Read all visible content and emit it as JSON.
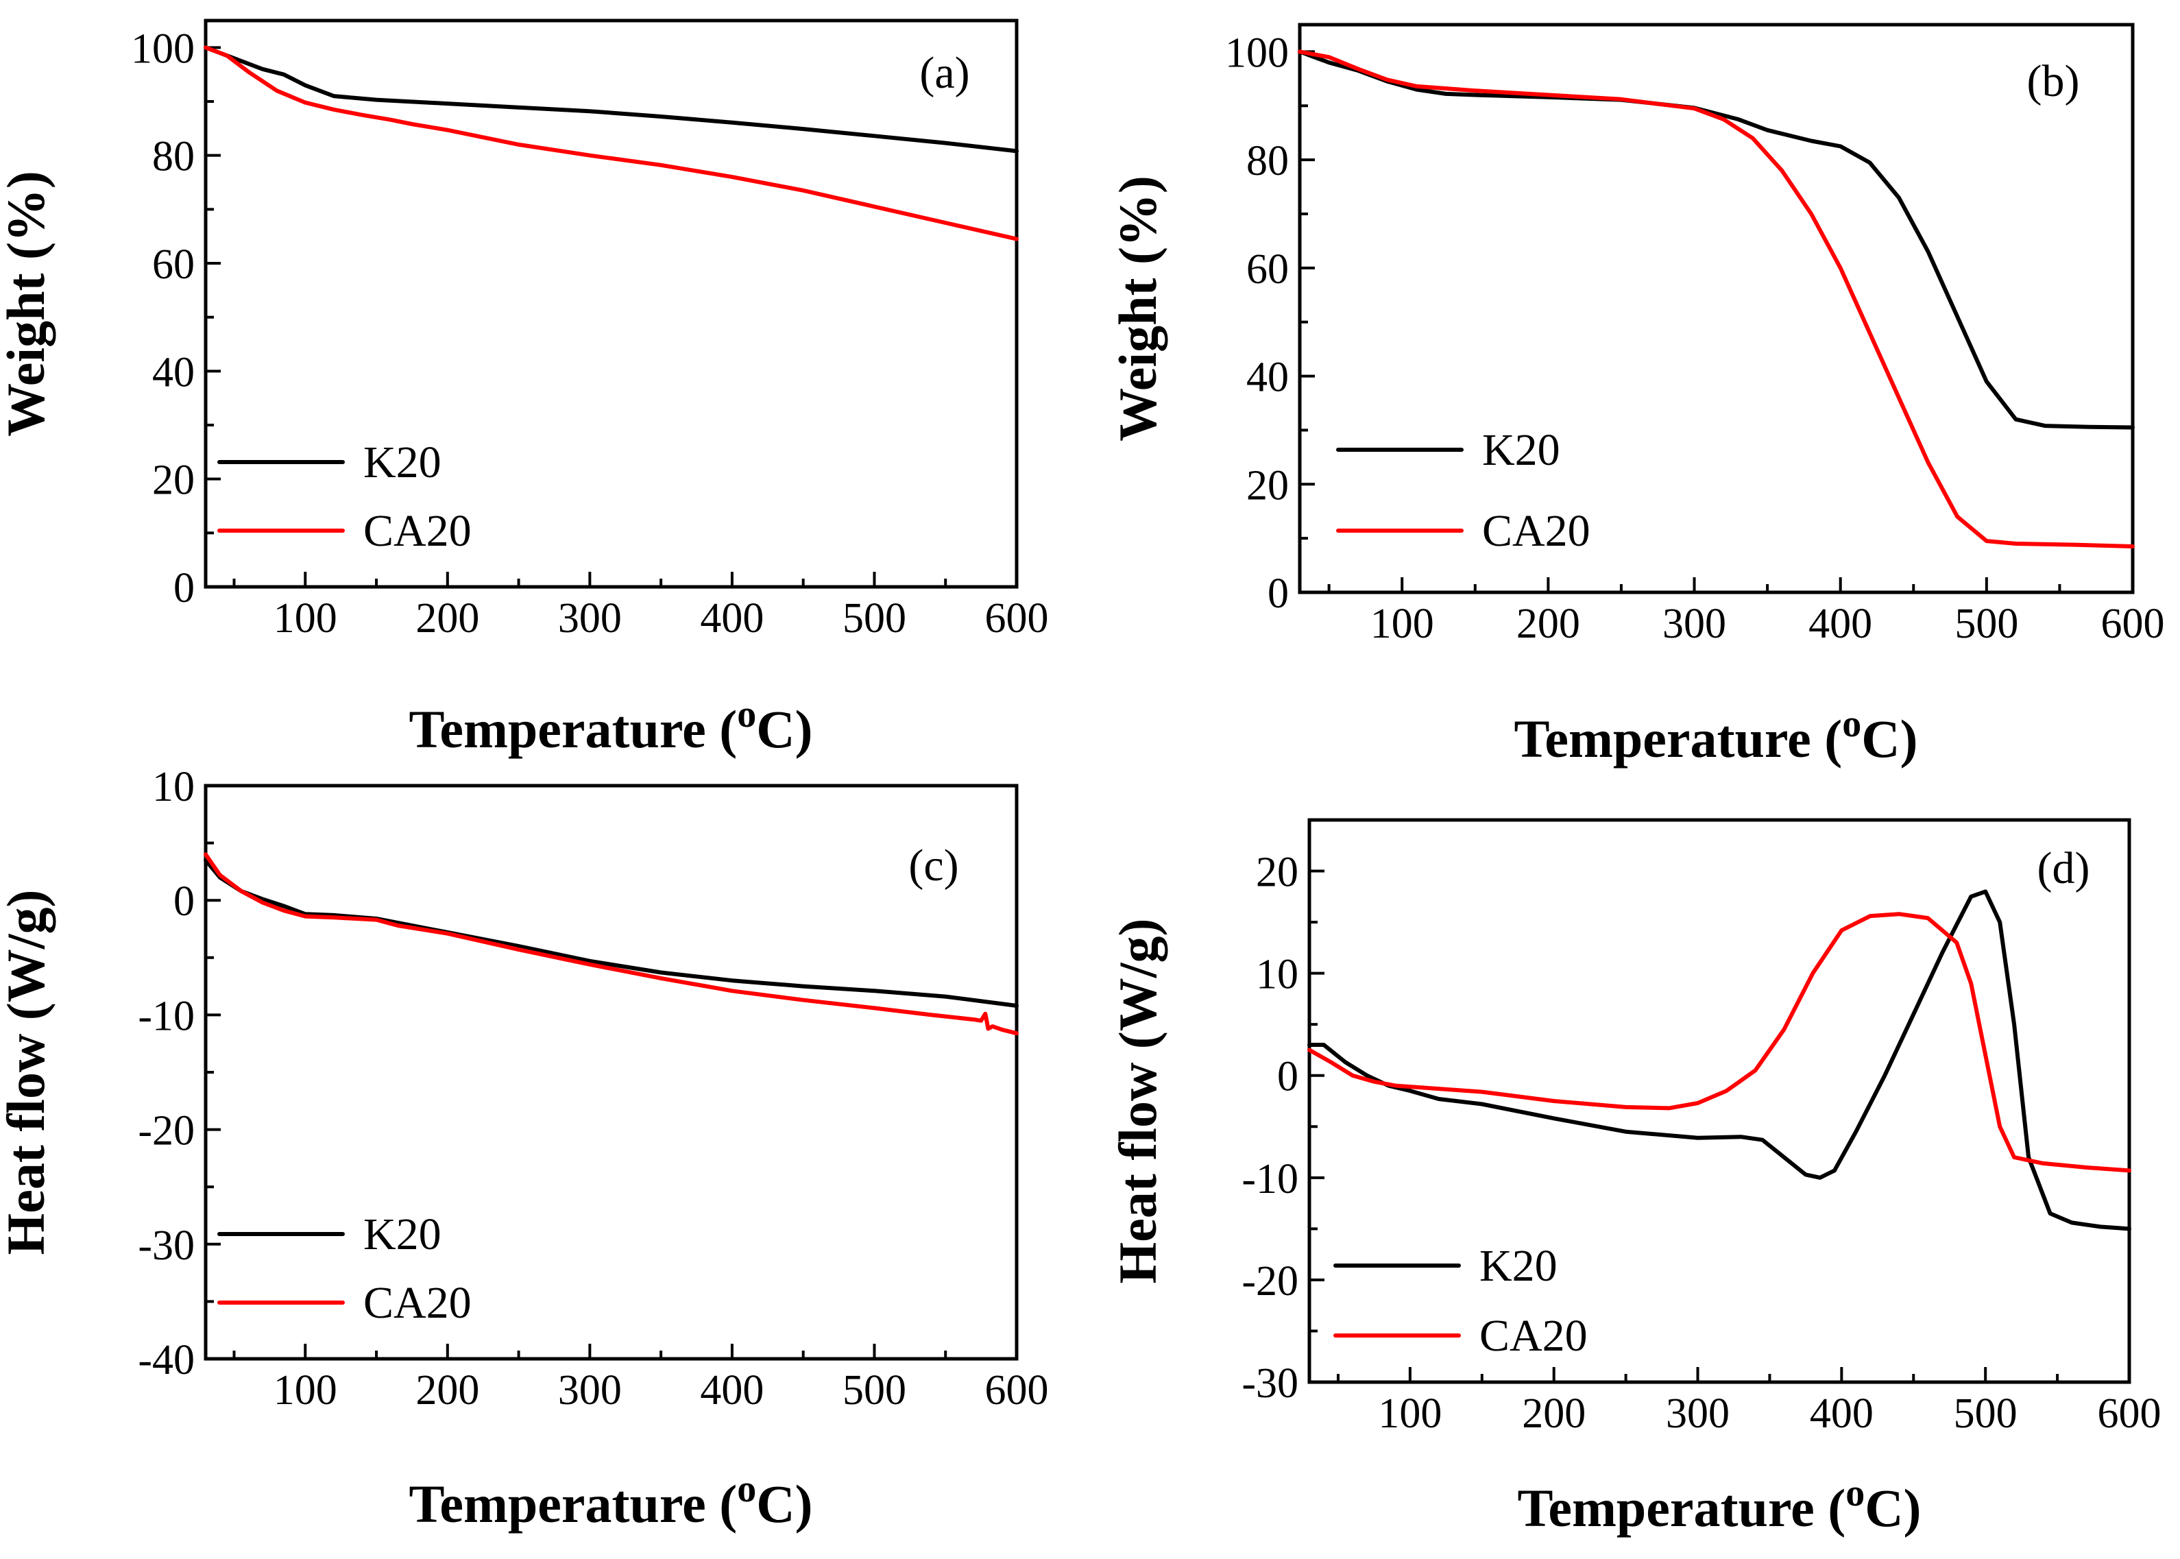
{
  "colors": {
    "K20": "#000000",
    "CA20": "#ff0000"
  },
  "chart_data": [
    {
      "type": "line",
      "panel_label": "(a)",
      "xlabel": "Temperature (",
      "xlabel_sup": "o",
      "xlabel_end": "C)",
      "ylabel": "Weight (%)",
      "xlim": [
        30,
        600
      ],
      "ylim": [
        0,
        105
      ],
      "xticks": [
        100,
        200,
        300,
        400,
        500,
        600
      ],
      "yticks": [
        0,
        20,
        40,
        60,
        80,
        100
      ],
      "legend": [
        "K20",
        "CA20"
      ],
      "legend_position": "bottom-left",
      "series": [
        {
          "name": "K20",
          "x": [
            30,
            50,
            70,
            85,
            100,
            120,
            150,
            200,
            250,
            300,
            350,
            400,
            450,
            500,
            550,
            600
          ],
          "y": [
            100,
            98,
            96,
            95,
            93,
            91,
            90.3,
            89.6,
            88.9,
            88.2,
            87.2,
            86.1,
            84.9,
            83.6,
            82.3,
            80.8
          ]
        },
        {
          "name": "CA20",
          "x": [
            30,
            45,
            60,
            80,
            100,
            120,
            140,
            160,
            175,
            200,
            250,
            300,
            350,
            400,
            450,
            500,
            550,
            600
          ],
          "y": [
            100,
            98.5,
            95.5,
            92,
            89.8,
            88.5,
            87.5,
            86.6,
            85.8,
            84.7,
            82,
            80,
            78.2,
            76,
            73.5,
            70.5,
            67.5,
            64.5
          ]
        }
      ]
    },
    {
      "type": "line",
      "panel_label": "(b)",
      "xlabel": "Temperature (",
      "xlabel_sup": "o",
      "xlabel_end": "C)",
      "ylabel": "Weight (%)",
      "xlim": [
        30,
        600
      ],
      "ylim": [
        0,
        105
      ],
      "xticks": [
        100,
        200,
        300,
        400,
        500,
        600
      ],
      "yticks": [
        0,
        20,
        40,
        60,
        80,
        100
      ],
      "legend": [
        "K20",
        "CA20"
      ],
      "legend_position": "bottom-left",
      "series": [
        {
          "name": "K20",
          "x": [
            30,
            50,
            70,
            90,
            110,
            130,
            150,
            200,
            250,
            300,
            330,
            350,
            380,
            400,
            420,
            440,
            460,
            480,
            500,
            520,
            540,
            570,
            600
          ],
          "y": [
            100,
            98,
            96.5,
            94.5,
            93,
            92.2,
            92,
            91.6,
            91.1,
            89.6,
            87.5,
            85.5,
            83.5,
            82.5,
            79.5,
            73,
            63,
            51,
            39,
            32,
            30.8,
            30.6,
            30.5
          ]
        },
        {
          "name": "CA20",
          "x": [
            30,
            50,
            70,
            90,
            110,
            150,
            200,
            250,
            300,
            320,
            340,
            360,
            380,
            400,
            420,
            440,
            460,
            480,
            500,
            520,
            560,
            600
          ],
          "y": [
            100,
            99,
            96.8,
            94.8,
            93.6,
            92.8,
            92,
            91.2,
            89.5,
            87.5,
            84,
            78,
            70,
            60,
            48,
            36,
            24,
            14,
            9.5,
            9,
            8.8,
            8.5
          ]
        }
      ]
    },
    {
      "type": "line",
      "panel_label": "(c)",
      "xlabel": "Temperature (",
      "xlabel_sup": "o",
      "xlabel_end": "C)",
      "ylabel": "Heat flow (W/g)",
      "xlim": [
        30,
        600
      ],
      "ylim": [
        -40,
        10
      ],
      "xticks": [
        100,
        200,
        300,
        400,
        500,
        600
      ],
      "yticks": [
        -40,
        -30,
        -20,
        -10,
        0,
        10
      ],
      "legend": [
        "K20",
        "CA20"
      ],
      "legend_position": "bottom-left",
      "series": [
        {
          "name": "K20",
          "x": [
            30,
            40,
            55,
            70,
            85,
            100,
            120,
            150,
            200,
            250,
            300,
            350,
            400,
            450,
            500,
            550,
            600
          ],
          "y": [
            3.5,
            2,
            0.8,
            0.1,
            -0.5,
            -1.2,
            -1.3,
            -1.6,
            -2.8,
            -4,
            -5.3,
            -6.3,
            -7,
            -7.5,
            -7.9,
            -8.4,
            -9.2
          ]
        },
        {
          "name": "CA20",
          "x": [
            30,
            40,
            55,
            70,
            85,
            100,
            120,
            150,
            165,
            200,
            250,
            300,
            350,
            400,
            450,
            500,
            540,
            570,
            575,
            578,
            580,
            583,
            590,
            600
          ],
          "y": [
            4,
            2.2,
            0.8,
            -0.2,
            -0.9,
            -1.4,
            -1.5,
            -1.7,
            -2.2,
            -2.9,
            -4.3,
            -5.6,
            -6.8,
            -7.9,
            -8.7,
            -9.4,
            -10,
            -10.4,
            -10.5,
            -9.9,
            -11.2,
            -11.0,
            -11.3,
            -11.6
          ]
        }
      ]
    },
    {
      "type": "line",
      "panel_label": "(d)",
      "xlabel": "Temperature (",
      "xlabel_sup": "o",
      "xlabel_end": "C)",
      "ylabel": "Heat flow (W/g)",
      "xlim": [
        30,
        600
      ],
      "ylim": [
        -30,
        25
      ],
      "xticks": [
        100,
        200,
        300,
        400,
        500,
        600
      ],
      "yticks": [
        -30,
        -20,
        -10,
        0,
        10,
        20
      ],
      "legend": [
        "K20",
        "CA20"
      ],
      "legend_position": "bottom-left",
      "series": [
        {
          "name": "K20",
          "x": [
            30,
            40,
            55,
            70,
            85,
            100,
            120,
            150,
            200,
            250,
            300,
            330,
            345,
            360,
            375,
            385,
            395,
            410,
            430,
            450,
            470,
            490,
            500,
            510,
            520,
            530,
            545,
            560,
            580,
            600
          ],
          "y": [
            3,
            3,
            1.3,
            0,
            -1,
            -1.5,
            -2.3,
            -2.8,
            -4.2,
            -5.5,
            -6.1,
            -6,
            -6.3,
            -8,
            -9.7,
            -10,
            -9.3,
            -5.5,
            0,
            6,
            12,
            17.5,
            18,
            15,
            5,
            -8,
            -13.5,
            -14.4,
            -14.8,
            -15
          ]
        },
        {
          "name": "CA20",
          "x": [
            30,
            45,
            60,
            75,
            90,
            100,
            120,
            150,
            200,
            250,
            280,
            300,
            320,
            340,
            360,
            380,
            400,
            420,
            440,
            460,
            480,
            490,
            500,
            510,
            520,
            540,
            570,
            600
          ],
          "y": [
            2.5,
            1.3,
            0,
            -0.6,
            -1,
            -1.1,
            -1.3,
            -1.6,
            -2.5,
            -3.1,
            -3.2,
            -2.7,
            -1.5,
            0.5,
            4.5,
            10,
            14.2,
            15.6,
            15.8,
            15.4,
            13,
            9,
            2,
            -5,
            -8,
            -8.6,
            -9,
            -9.3
          ]
        }
      ]
    }
  ]
}
